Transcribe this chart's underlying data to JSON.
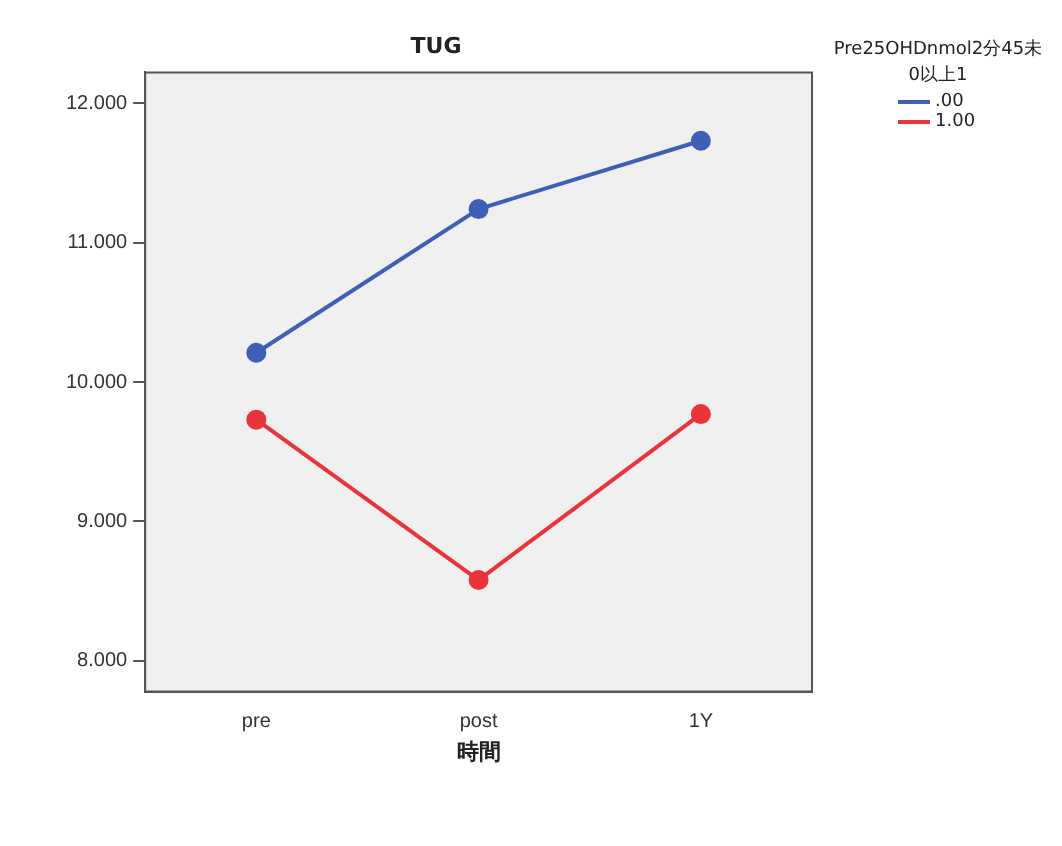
{
  "chart_data": {
    "type": "line",
    "title": "TUG",
    "xlabel": "時間",
    "legend_title": "Pre25OHDnmol2分45未\n0以上1",
    "categories": [
      "pre",
      "post",
      "1Y"
    ],
    "series": [
      {
        "name": ".00",
        "color": "#3f5fb5",
        "values": [
          10.21,
          11.24,
          11.73
        ]
      },
      {
        "name": "1.00",
        "color": "#e8343a",
        "values": [
          9.73,
          8.58,
          9.77
        ]
      }
    ],
    "ylim": [
      7.78,
      12.22
    ],
    "yticks": [
      {
        "value": 8,
        "label": "8.000"
      },
      {
        "value": 9,
        "label": "9.000"
      },
      {
        "value": 10,
        "label": "10.000"
      },
      {
        "value": 11,
        "label": "11.000"
      },
      {
        "value": 12,
        "label": "12.000"
      }
    ],
    "grid": false,
    "legend": "top right",
    "marker": "circle",
    "line_style": "solid"
  }
}
